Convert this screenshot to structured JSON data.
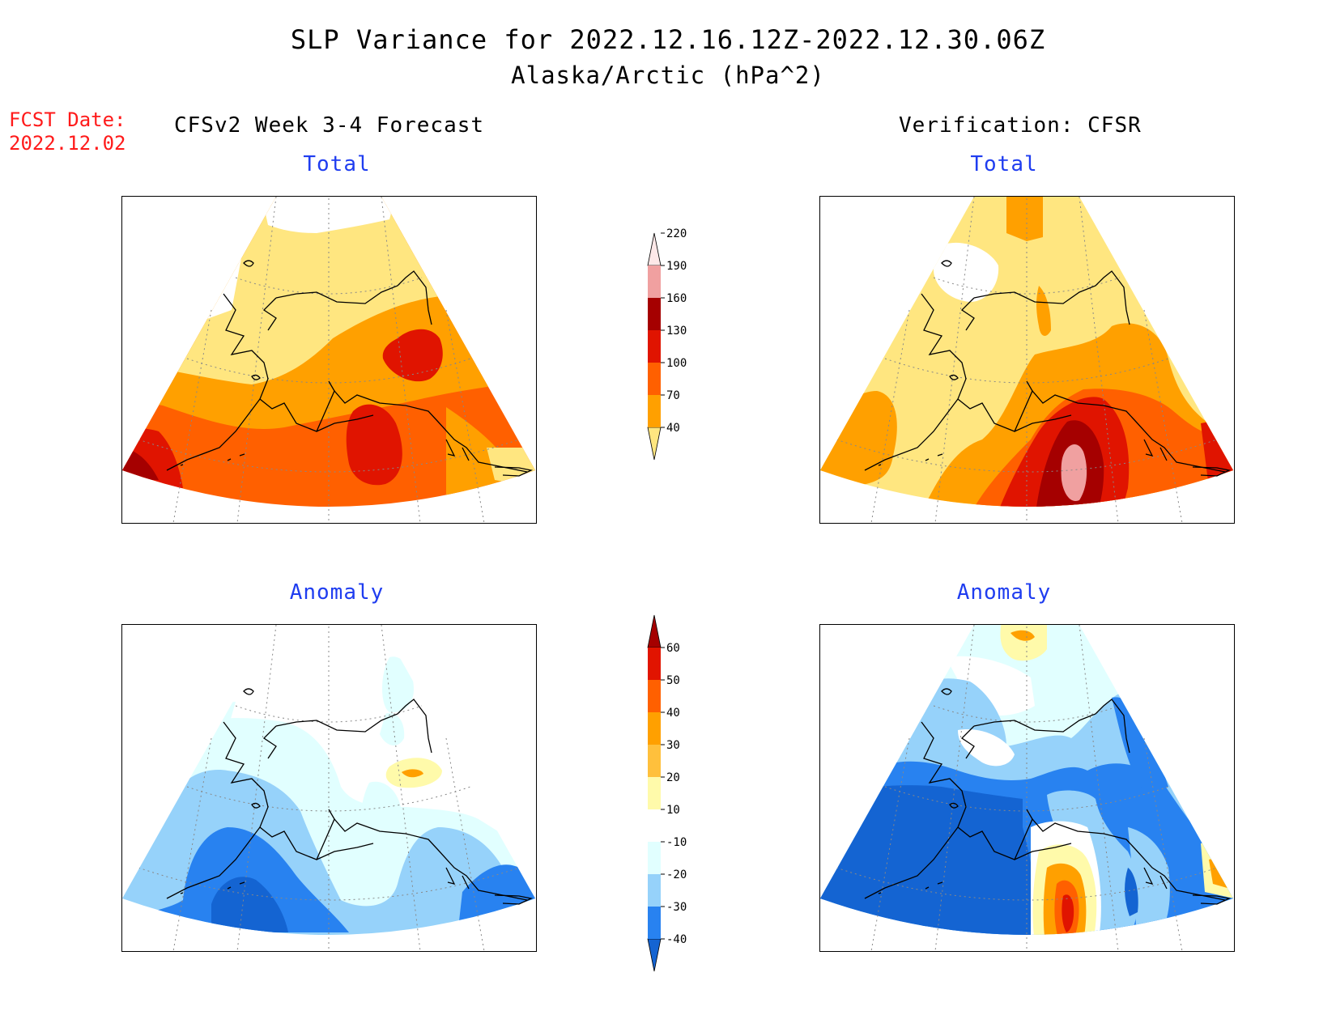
{
  "title": {
    "line1": "SLP Variance for 2022.12.16.12Z-2022.12.30.06Z",
    "line2": "Alaska/Arctic (hPa^2)"
  },
  "forecast_date": {
    "label": "FCST Date:",
    "value": "2022.12.02"
  },
  "columns": {
    "left": "CFSv2 Week 3-4 Forecast",
    "right": "Verification: CFSR"
  },
  "panels": {
    "forecast_total": {
      "subtitle": "Total"
    },
    "verification_total": {
      "subtitle": "Total"
    },
    "forecast_anomaly": {
      "subtitle": "Anomaly"
    },
    "verification_anomaly": {
      "subtitle": "Anomaly"
    }
  },
  "colorbars": {
    "total": {
      "ticks": [
        "40",
        "70",
        "100",
        "130",
        "160",
        "190",
        "220"
      ],
      "colors": [
        "#ffe680",
        "#ffa000",
        "#ff6000",
        "#e01400",
        "#a50000",
        "#f0a0a0",
        "#fde8e8"
      ]
    },
    "anomaly": {
      "ticks": [
        "-40",
        "-30",
        "-20",
        "-10",
        "10",
        "20",
        "30",
        "40",
        "50",
        "60"
      ],
      "colors": [
        "#1464d2",
        "#2882f0",
        "#96d2fa",
        "#e1ffff",
        "#ffffff",
        "#fffaaa",
        "#ffc03c",
        "#ffa000",
        "#ff6000",
        "#e11400",
        "#a50000"
      ]
    }
  },
  "map_fills": {
    "lt_yellow": "#ffe680",
    "orange": "#ffa000",
    "dk_orange": "#ff6000",
    "red": "#e01400",
    "dk_red": "#a50000",
    "pink": "#f0a0a0",
    "white": "#ffffff",
    "lt_cyan": "#e1ffff",
    "lt_blue": "#96d2fa",
    "blue": "#2882f0",
    "dk_blue": "#1464d2",
    "pale_yellow": "#fffaaa"
  }
}
